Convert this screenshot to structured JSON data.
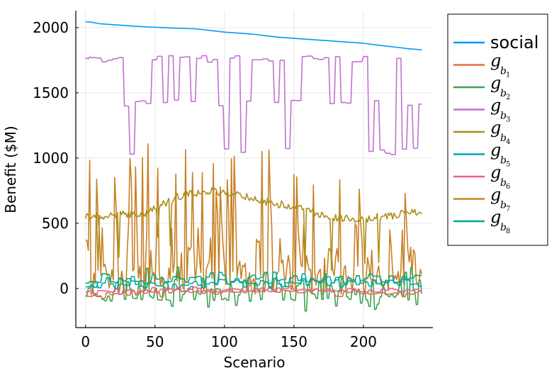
{
  "chart_data": {
    "type": "line",
    "title": "",
    "xlabel": "Scenario",
    "ylabel": "Benefit ($M)",
    "xlim": [
      -7,
      250
    ],
    "ylim": [
      -300,
      2130
    ],
    "xticks": [
      0,
      50,
      100,
      150,
      200
    ],
    "yticks": [
      0,
      500,
      1000,
      1500,
      2000
    ],
    "grid": true,
    "legend_position": "outer-right",
    "x_end": 242,
    "series": [
      {
        "name": "social",
        "color": "#009AFA",
        "kind": "decline",
        "points": [
          [
            0,
            2045
          ],
          [
            5,
            2040
          ],
          [
            10,
            2030
          ],
          [
            30,
            2015
          ],
          [
            45,
            2005
          ],
          [
            60,
            1998
          ],
          [
            80,
            1990
          ],
          [
            100,
            1965
          ],
          [
            120,
            1950
          ],
          [
            140,
            1925
          ],
          [
            160,
            1910
          ],
          [
            180,
            1895
          ],
          [
            200,
            1880
          ],
          [
            215,
            1860
          ],
          [
            225,
            1848
          ],
          [
            232,
            1838
          ],
          [
            242,
            1830
          ]
        ]
      },
      {
        "name": "g",
        "sub": "b",
        "subsub": "1",
        "color": "#E36F47",
        "kind": "noise",
        "params": {
          "base": -50,
          "drift": 35,
          "amp": 25,
          "block": 3,
          "seed": 11
        }
      },
      {
        "name": "g",
        "sub": "b",
        "subsub": "2",
        "color": "#3EA44E",
        "kind": "noise",
        "params": {
          "base": -10,
          "drift": 0,
          "amp": 110,
          "block": 2,
          "seed": 23,
          "min": -215,
          "max": 205
        }
      },
      {
        "name": "g",
        "sub": "b",
        "subsub": "3",
        "color": "#C271D2",
        "kind": "steps",
        "params": {
          "levels": [
            1760,
            1420,
            1050
          ],
          "weights": [
            0.35,
            0.4,
            0.25
          ],
          "block": 4,
          "seed": 37,
          "start": [
            1765,
            1765,
            1760,
            1775,
            1770
          ]
        }
      },
      {
        "name": "g",
        "sub": "b",
        "subsub": "4",
        "color": "#AC8E18",
        "kind": "regime",
        "params": {
          "seed": 41,
          "levels": [
            550,
            560,
            580,
            700,
            750,
            720,
            660,
            620,
            550,
            530,
            560,
            590
          ],
          "amp": 60,
          "min": 140
        }
      },
      {
        "name": "g",
        "sub": "b",
        "subsub": "5",
        "color": "#00A9AD",
        "kind": "noise",
        "params": {
          "base": 40,
          "drift": 10,
          "amp": 35,
          "block": 3,
          "seed": 53,
          "min": -20,
          "max": 120
        }
      },
      {
        "name": "g",
        "sub": "b",
        "subsub": "6",
        "color": "#ED5E93",
        "kind": "noise",
        "params": {
          "base": -20,
          "drift": 5,
          "amp": 18,
          "block": 3,
          "seed": 61,
          "min": -55,
          "max": 15
        }
      },
      {
        "name": "g",
        "sub": "b",
        "subsub": "7",
        "color": "#C68125",
        "kind": "spiky",
        "params": {
          "seed": 79,
          "min": -60,
          "max": 1110
        }
      },
      {
        "name": "g",
        "sub": "b",
        "subsub": "8",
        "color": "#00A98D",
        "kind": "noise",
        "params": {
          "base": 70,
          "drift": -5,
          "amp": 40,
          "block": 3,
          "seed": 97,
          "min": 0,
          "max": 180
        }
      }
    ]
  }
}
